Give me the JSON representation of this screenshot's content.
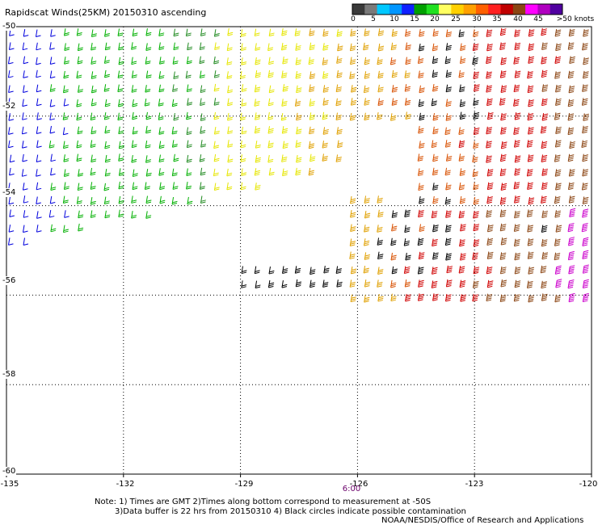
{
  "title": "Rapidscat Winds(25KM) 20150310 ascending",
  "legend": {
    "labels": [
      "0",
      "5",
      "10",
      "15",
      "20",
      "25",
      "30",
      "35",
      "40",
      "45",
      ">50 knots"
    ],
    "colors": [
      "#3a3a3a",
      "#7a7a7a",
      "#00c8ff",
      "#0096ff",
      "#1020ff",
      "#00a000",
      "#20e020",
      "#ffff60",
      "#ffd000",
      "#ffa000",
      "#ff6000",
      "#ff2020",
      "#c00000",
      "#8b4513",
      "#ff00ff",
      "#b000c0",
      "#5000a0"
    ]
  },
  "axes": {
    "lat_labels": [
      "-50",
      "-52",
      "-54",
      "-56",
      "-58",
      "-60"
    ],
    "lon_labels": [
      "-135",
      "-132",
      "-129",
      "-126",
      "-123",
      "-120"
    ],
    "time_label": "6:00"
  },
  "notes": [
    "Note: 1) Times are GMT 2)Times along bottom correspond to measurement at -50S",
    "3)Data buffer is 22 hrs from 20150310 4) Black circles indicate possible contamination",
    "NOAA/NESDIS/Office of Research and Applications"
  ],
  "map_data": {
    "projection": "lat-lon",
    "lon_range": [
      -135,
      -120
    ],
    "lat_range": [
      -60,
      -50
    ],
    "speed_colors": [
      {
        "max_kt": 15,
        "color": "#0000dd"
      },
      {
        "max_kt": 20,
        "color": "#00b000"
      },
      {
        "max_kt": 23,
        "color": "#228b22"
      },
      {
        "max_kt": 27,
        "color": "#e6e600"
      },
      {
        "max_kt": 30,
        "color": "#e0a000"
      },
      {
        "max_kt": 35,
        "color": "#d85000"
      },
      {
        "max_kt": 40,
        "color": "#d00000"
      },
      {
        "max_kt": 45,
        "color": "#8b4513"
      },
      {
        "max_kt": 99,
        "color": "#cc00cc"
      }
    ],
    "contaminated_color": "#000000",
    "swath": {
      "rows_lat_start": -50.0,
      "rows_lat_step": 0.12,
      "lon_step": 0.35,
      "description_pieces": [
        {
          "lat": [
            -50.0,
            -54.9
          ],
          "lon": [
            -135.0,
            -126.0
          ]
        },
        {
          "lat": [
            -50.0,
            -56.2
          ],
          "lon": [
            -126.0,
            -120.0
          ]
        }
      ]
    }
  }
}
